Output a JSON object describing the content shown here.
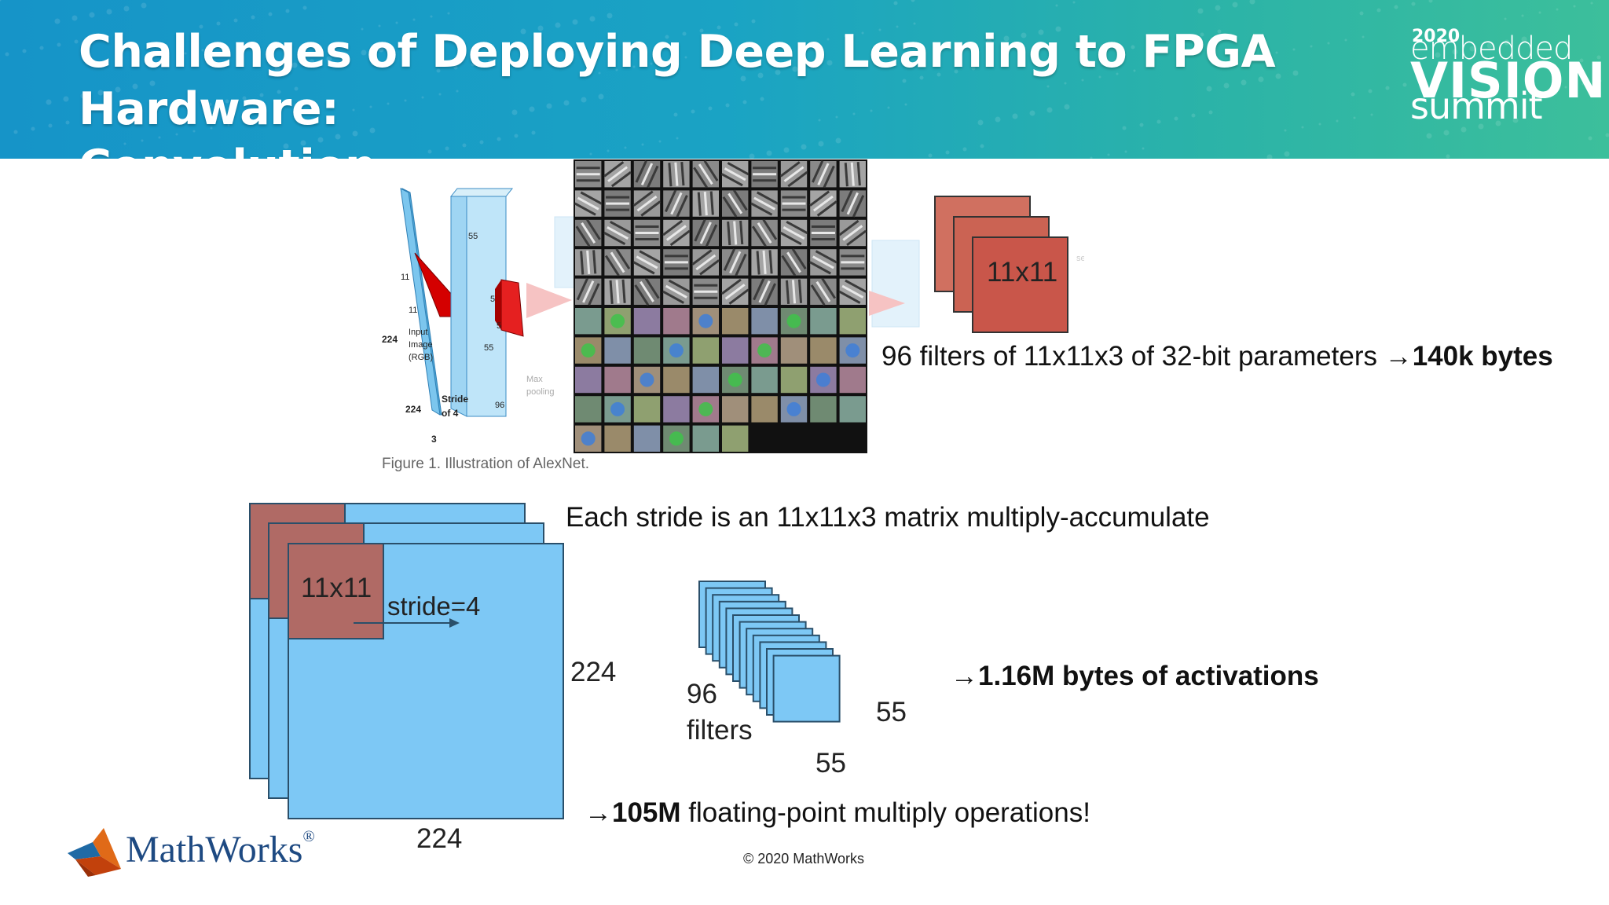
{
  "slide": {
    "title_line1": "Challenges of Deploying Deep Learning to FPGA Hardware:",
    "title_line2": "Convolution"
  },
  "event_logo": {
    "year": "2020",
    "word1": "embedded",
    "word2": "VISION",
    "word3": "summit"
  },
  "alexnet_figure": {
    "caption": "Figure 1. Illustration of AlexNet.",
    "labels": {
      "dim_224_a": "224",
      "dim_224_b": "224",
      "dim_3": "3",
      "dim_11_a": "11",
      "dim_11_b": "11",
      "input_line1": "Input",
      "input_line2": "Image",
      "input_line3": "(RGB)",
      "stride_line1": "Stride",
      "stride_line2": "of 4",
      "dim_55_a": "55",
      "dim_55_b": "55",
      "dim_5_a": "5",
      "dim_5_b": "5",
      "dim_96": "96",
      "max_line1": "Max",
      "max_line2": "pooling"
    }
  },
  "filters_diagram": {
    "kernel_label": "11x11",
    "description": "96 filters of 11x11x3 of 32-bit parameters",
    "result": "→140k bytes"
  },
  "input_diagram": {
    "kernel_label": "11x11",
    "stride_label": "stride=4",
    "height_label": "224",
    "width_label": "224"
  },
  "stride_note": "Each stride is an 11x11x3 matrix multiply-accumulate",
  "activations_diagram": {
    "count_label": "96",
    "count_unit": "filters",
    "height_label": "55",
    "width_label": "55",
    "result": "→1.16M bytes of activations"
  },
  "multiply_note": {
    "bold": "→105M",
    "rest": " floating-point multiply operations!"
  },
  "footer": {
    "brand": "MathWorks",
    "brand_mark": "®",
    "copyright": "© 2020 MathWorks"
  },
  "colors": {
    "header_blue": "#1694c8",
    "header_green": "#3cbf9b",
    "activation_blue": "#7dc8f5",
    "kernel_red": "#b06a65",
    "filter_red": "#c9564a"
  }
}
